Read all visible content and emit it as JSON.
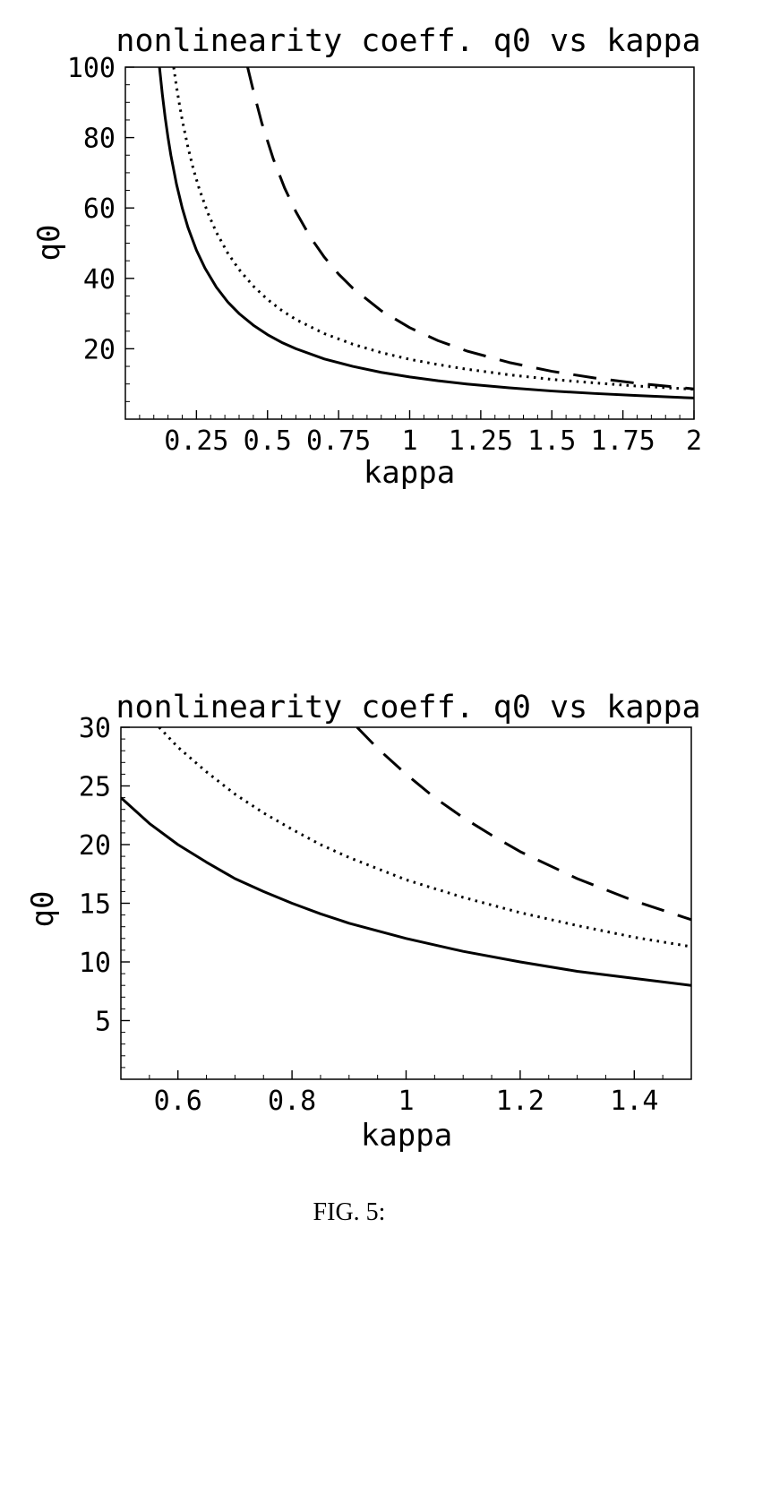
{
  "colors": {
    "ink": "#000000",
    "background": "#ffffff"
  },
  "caption": "FIG. 5:",
  "chart_data": [
    {
      "type": "line",
      "title": "nonlinearity coeff. q0 vs kappa",
      "xlabel": "kappa",
      "ylabel": "q0",
      "xlim": [
        0,
        2
      ],
      "ylim": [
        0,
        100
      ],
      "xticks": [
        0.25,
        0.5,
        0.75,
        1,
        1.25,
        1.5,
        1.75,
        2
      ],
      "xtick_labels": [
        "0.25",
        "0.5",
        "0.75",
        "1",
        "1.25",
        "1.5",
        "1.75",
        "2"
      ],
      "yticks": [
        20,
        40,
        60,
        80,
        100
      ],
      "ytick_labels": [
        "20",
        "40",
        "60",
        "80",
        "100"
      ],
      "x_minor_step": 0.05,
      "y_minor_step": 5,
      "grid": false,
      "legend": "none",
      "series": [
        {
          "name": "solid",
          "style": "solid",
          "x": [
            0.12,
            0.13,
            0.14,
            0.15,
            0.16,
            0.18,
            0.2,
            0.22,
            0.25,
            0.28,
            0.32,
            0.36,
            0.4,
            0.45,
            0.5,
            0.55,
            0.6,
            0.7,
            0.8,
            0.9,
            1.0,
            1.1,
            1.2,
            1.35,
            1.5,
            1.65,
            1.8,
            2.0
          ],
          "y": [
            100,
            92.3,
            85.7,
            80,
            75,
            66.7,
            60,
            54.5,
            48,
            42.9,
            37.5,
            33.3,
            30,
            26.7,
            24,
            21.8,
            20,
            17.1,
            15,
            13.3,
            12,
            10.9,
            10,
            8.9,
            8,
            7.3,
            6.7,
            6
          ]
        },
        {
          "name": "dotted",
          "style": "dotted",
          "x": [
            0.17,
            0.18,
            0.19,
            0.2,
            0.22,
            0.24,
            0.26,
            0.29,
            0.32,
            0.36,
            0.4,
            0.45,
            0.5,
            0.55,
            0.6,
            0.7,
            0.8,
            0.9,
            1.0,
            1.1,
            1.2,
            1.35,
            1.5,
            1.65,
            1.8,
            2.0
          ],
          "y": [
            100,
            94.4,
            89.5,
            85,
            77.3,
            70.8,
            65.4,
            58.6,
            53.1,
            47.2,
            42.5,
            37.8,
            34,
            30.9,
            28.3,
            24.3,
            21.3,
            18.9,
            17,
            15.5,
            14.2,
            12.6,
            11.3,
            10.3,
            9.4,
            8.5
          ]
        },
        {
          "name": "dashed",
          "style": "dashed",
          "x": [
            0.43,
            0.45,
            0.48,
            0.52,
            0.56,
            0.6,
            0.65,
            0.7,
            0.75,
            0.8,
            0.9,
            1.0,
            1.1,
            1.2,
            1.35,
            1.5,
            1.65,
            1.8,
            2.0
          ],
          "y": [
            100,
            93.3,
            84.1,
            74.0,
            65.7,
            58.9,
            51.8,
            46.0,
            41.2,
            37.2,
            30.8,
            26,
            22.3,
            19.4,
            16.1,
            13.6,
            11.7,
            10.2,
            8.6
          ]
        }
      ]
    },
    {
      "type": "line",
      "title": "nonlinearity coeff. q0 vs kappa",
      "xlabel": "kappa",
      "ylabel": "q0",
      "xlim": [
        0.5,
        1.5
      ],
      "ylim": [
        0,
        30
      ],
      "xticks": [
        0.6,
        0.8,
        1,
        1.2,
        1.4
      ],
      "xtick_labels": [
        "0.6",
        "0.8",
        "1",
        "1.2",
        "1.4"
      ],
      "yticks": [
        5,
        10,
        15,
        20,
        25,
        30
      ],
      "ytick_labels": [
        "5",
        "10",
        "15",
        "20",
        "25",
        "30"
      ],
      "x_minor_step": 0.05,
      "y_minor_step": 1,
      "grid": false,
      "legend": "none",
      "series": [
        {
          "name": "solid",
          "style": "solid",
          "x": [
            0.5,
            0.55,
            0.6,
            0.65,
            0.7,
            0.75,
            0.8,
            0.85,
            0.9,
            1.0,
            1.1,
            1.2,
            1.3,
            1.4,
            1.5
          ],
          "y": [
            24,
            21.8,
            20,
            18.5,
            17.1,
            16,
            15,
            14.1,
            13.3,
            12,
            10.9,
            10,
            9.2,
            8.6,
            8
          ]
        },
        {
          "name": "dotted",
          "style": "dotted",
          "x": [
            0.567,
            0.6,
            0.65,
            0.7,
            0.75,
            0.8,
            0.85,
            0.9,
            1.0,
            1.1,
            1.2,
            1.3,
            1.4,
            1.5
          ],
          "y": [
            30,
            28.3,
            26.2,
            24.3,
            22.7,
            21.3,
            20,
            18.9,
            17,
            15.5,
            14.2,
            13.1,
            12.1,
            11.3
          ]
        },
        {
          "name": "dashed",
          "style": "dashed",
          "x": [
            0.914,
            0.95,
            1.0,
            1.05,
            1.1,
            1.15,
            1.2,
            1.3,
            1.4,
            1.5
          ],
          "y": [
            30,
            28.2,
            26,
            24.0,
            22.3,
            20.8,
            19.4,
            17.1,
            15.2,
            13.6
          ]
        }
      ]
    }
  ]
}
